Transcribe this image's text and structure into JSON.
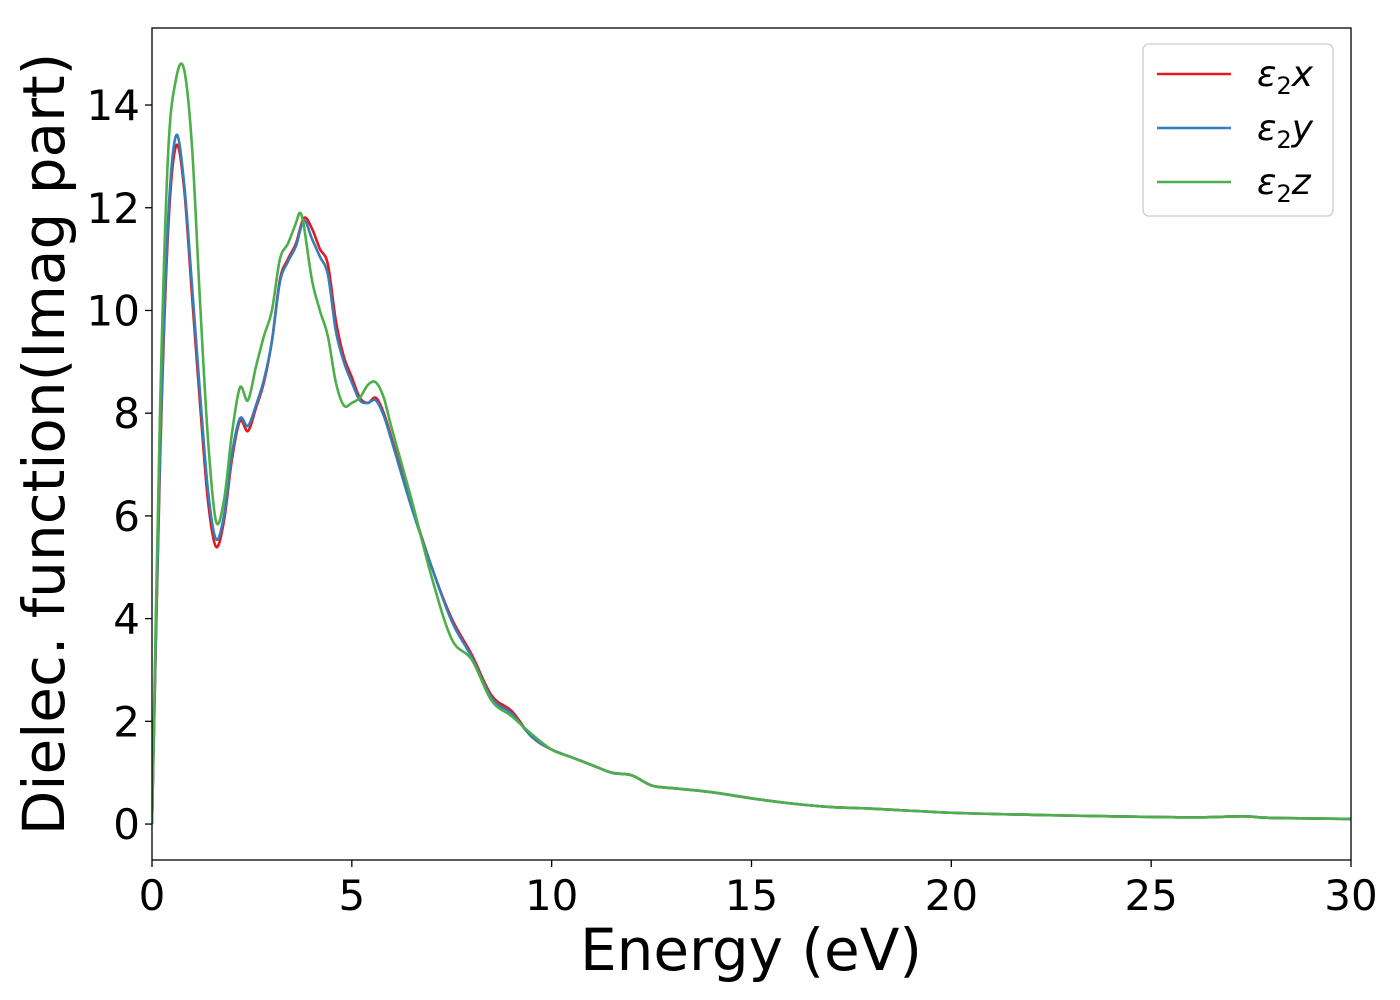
{
  "chart_data": {
    "type": "line",
    "title": "",
    "xlabel": "Energy (eV)",
    "ylabel": "Dielec. function(Imag part)",
    "xlim": [
      0,
      30
    ],
    "ylim": [
      -0.7,
      15.5
    ],
    "xticks": [
      0,
      5,
      10,
      15,
      20,
      25,
      30
    ],
    "yticks": [
      0,
      2,
      4,
      6,
      8,
      10,
      12,
      14
    ],
    "xtick_labels": [
      "0",
      "5",
      "10",
      "15",
      "20",
      "25",
      "30"
    ],
    "ytick_labels": [
      "0",
      "2",
      "4",
      "6",
      "8",
      "10",
      "12",
      "14"
    ],
    "grid": false,
    "legend_position": "top-right",
    "series": [
      {
        "name": "ε2x",
        "legend": {
          "symbol": "ε",
          "sub": "2",
          "var": "x"
        },
        "color": "#e41a1c",
        "points": [
          [
            0,
            0
          ],
          [
            0.2,
            7.0
          ],
          [
            0.4,
            11.5
          ],
          [
            0.6,
            13.2
          ],
          [
            0.8,
            12.4
          ],
          [
            1.0,
            10.3
          ],
          [
            1.2,
            8.2
          ],
          [
            1.4,
            6.3
          ],
          [
            1.6,
            5.4
          ],
          [
            1.8,
            5.9
          ],
          [
            2.0,
            7.1
          ],
          [
            2.2,
            7.85
          ],
          [
            2.4,
            7.65
          ],
          [
            2.6,
            8.1
          ],
          [
            2.8,
            8.6
          ],
          [
            3.0,
            9.4
          ],
          [
            3.2,
            10.6
          ],
          [
            3.4,
            11.0
          ],
          [
            3.6,
            11.3
          ],
          [
            3.8,
            11.8
          ],
          [
            4.0,
            11.6
          ],
          [
            4.2,
            11.2
          ],
          [
            4.4,
            10.9
          ],
          [
            4.6,
            9.8
          ],
          [
            4.8,
            9.1
          ],
          [
            5.0,
            8.7
          ],
          [
            5.2,
            8.3
          ],
          [
            5.4,
            8.2
          ],
          [
            5.6,
            8.3
          ],
          [
            5.8,
            8.0
          ],
          [
            6.0,
            7.5
          ],
          [
            6.5,
            6.2
          ],
          [
            7.0,
            5.0
          ],
          [
            7.5,
            4.0
          ],
          [
            8.0,
            3.3
          ],
          [
            8.5,
            2.5
          ],
          [
            9.0,
            2.2
          ],
          [
            9.5,
            1.7
          ],
          [
            10.0,
            1.45
          ],
          [
            10.5,
            1.3
          ],
          [
            11.0,
            1.15
          ],
          [
            11.5,
            1.0
          ],
          [
            12.0,
            0.95
          ],
          [
            12.5,
            0.75
          ],
          [
            13.0,
            0.7
          ],
          [
            14.0,
            0.62
          ],
          [
            15.0,
            0.5
          ],
          [
            16.0,
            0.4
          ],
          [
            17.0,
            0.33
          ],
          [
            18.0,
            0.3
          ],
          [
            20.0,
            0.22
          ],
          [
            22.0,
            0.18
          ],
          [
            24.0,
            0.15
          ],
          [
            26.0,
            0.13
          ],
          [
            27.3,
            0.15
          ],
          [
            28.0,
            0.12
          ],
          [
            30.0,
            0.1
          ]
        ]
      },
      {
        "name": "ε2y",
        "legend": {
          "symbol": "ε",
          "sub": "2",
          "var": "y"
        },
        "color": "#377eb8",
        "points": [
          [
            0,
            0
          ],
          [
            0.2,
            7.2
          ],
          [
            0.4,
            11.7
          ],
          [
            0.6,
            13.4
          ],
          [
            0.8,
            12.5
          ],
          [
            1.0,
            10.5
          ],
          [
            1.2,
            8.4
          ],
          [
            1.4,
            6.5
          ],
          [
            1.6,
            5.55
          ],
          [
            1.8,
            6.0
          ],
          [
            2.0,
            7.2
          ],
          [
            2.2,
            7.9
          ],
          [
            2.4,
            7.75
          ],
          [
            2.6,
            8.15
          ],
          [
            2.8,
            8.65
          ],
          [
            3.0,
            9.4
          ],
          [
            3.2,
            10.55
          ],
          [
            3.4,
            10.95
          ],
          [
            3.6,
            11.25
          ],
          [
            3.8,
            11.75
          ],
          [
            4.0,
            11.4
          ],
          [
            4.2,
            11.05
          ],
          [
            4.4,
            10.7
          ],
          [
            4.6,
            9.6
          ],
          [
            4.8,
            9.0
          ],
          [
            5.0,
            8.6
          ],
          [
            5.2,
            8.25
          ],
          [
            5.4,
            8.2
          ],
          [
            5.6,
            8.25
          ],
          [
            5.8,
            7.95
          ],
          [
            6.0,
            7.45
          ],
          [
            6.5,
            6.15
          ],
          [
            7.0,
            5.0
          ],
          [
            7.5,
            3.95
          ],
          [
            8.0,
            3.25
          ],
          [
            8.5,
            2.45
          ],
          [
            9.0,
            2.15
          ],
          [
            9.5,
            1.7
          ],
          [
            10.0,
            1.45
          ],
          [
            10.5,
            1.3
          ],
          [
            11.0,
            1.15
          ],
          [
            11.5,
            1.0
          ],
          [
            12.0,
            0.95
          ],
          [
            12.5,
            0.75
          ],
          [
            13.0,
            0.7
          ],
          [
            14.0,
            0.62
          ],
          [
            15.0,
            0.5
          ],
          [
            16.0,
            0.4
          ],
          [
            17.0,
            0.33
          ],
          [
            18.0,
            0.3
          ],
          [
            20.0,
            0.22
          ],
          [
            22.0,
            0.18
          ],
          [
            24.0,
            0.15
          ],
          [
            26.0,
            0.13
          ],
          [
            27.3,
            0.15
          ],
          [
            28.0,
            0.12
          ],
          [
            30.0,
            0.1
          ]
        ]
      },
      {
        "name": "ε2z",
        "legend": {
          "symbol": "ε",
          "sub": "2",
          "var": "z"
        },
        "color": "#4daf4a",
        "points": [
          [
            0,
            0
          ],
          [
            0.2,
            8.0
          ],
          [
            0.4,
            13.0
          ],
          [
            0.6,
            14.5
          ],
          [
            0.8,
            14.7
          ],
          [
            1.0,
            13.2
          ],
          [
            1.2,
            10.2
          ],
          [
            1.4,
            7.5
          ],
          [
            1.6,
            5.9
          ],
          [
            1.8,
            6.3
          ],
          [
            2.0,
            7.6
          ],
          [
            2.2,
            8.5
          ],
          [
            2.4,
            8.25
          ],
          [
            2.6,
            8.9
          ],
          [
            2.8,
            9.5
          ],
          [
            3.0,
            10.0
          ],
          [
            3.2,
            11.0
          ],
          [
            3.4,
            11.3
          ],
          [
            3.6,
            11.7
          ],
          [
            3.7,
            11.9
          ],
          [
            3.8,
            11.65
          ],
          [
            4.0,
            10.6
          ],
          [
            4.2,
            10.0
          ],
          [
            4.4,
            9.5
          ],
          [
            4.6,
            8.6
          ],
          [
            4.8,
            8.15
          ],
          [
            5.0,
            8.2
          ],
          [
            5.2,
            8.3
          ],
          [
            5.4,
            8.55
          ],
          [
            5.6,
            8.6
          ],
          [
            5.8,
            8.3
          ],
          [
            6.0,
            7.7
          ],
          [
            6.5,
            6.3
          ],
          [
            7.0,
            4.8
          ],
          [
            7.5,
            3.6
          ],
          [
            8.0,
            3.2
          ],
          [
            8.5,
            2.4
          ],
          [
            9.0,
            2.1
          ],
          [
            9.5,
            1.75
          ],
          [
            10.0,
            1.45
          ],
          [
            10.5,
            1.3
          ],
          [
            11.0,
            1.15
          ],
          [
            11.5,
            1.0
          ],
          [
            12.0,
            0.95
          ],
          [
            12.5,
            0.75
          ],
          [
            13.0,
            0.7
          ],
          [
            14.0,
            0.62
          ],
          [
            15.0,
            0.5
          ],
          [
            16.0,
            0.4
          ],
          [
            17.0,
            0.33
          ],
          [
            18.0,
            0.3
          ],
          [
            20.0,
            0.22
          ],
          [
            22.0,
            0.18
          ],
          [
            24.0,
            0.15
          ],
          [
            26.0,
            0.13
          ],
          [
            27.3,
            0.15
          ],
          [
            28.0,
            0.12
          ],
          [
            30.0,
            0.1
          ]
        ]
      }
    ]
  }
}
